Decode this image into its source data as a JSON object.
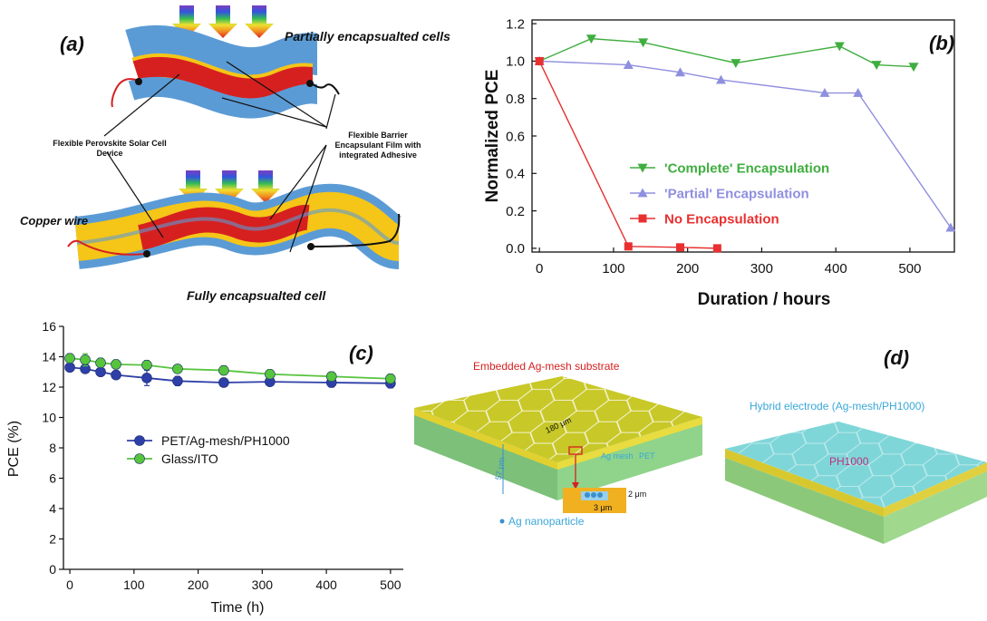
{
  "panel_a": {
    "label": "(a)",
    "top_caption": "Partially encapsualted cells",
    "bottom_caption": "Fully encapsualted cell",
    "device_label": "Flexible Perovskite Solar Cell Device",
    "barrier_label": "Flexible Barrier Encapsulant Film with integrated Adhesive",
    "wire_label": "Copper wire",
    "colors": {
      "barrier": "#5b9bd5",
      "active": "#d62020",
      "adhesive": "#f5c518"
    }
  },
  "panel_d": {
    "label": "(d)",
    "left_title": "Embedded Ag-mesh substrate",
    "right_title": "Hybrid electrode (Ag-mesh/PH1000)",
    "hex_dim": "180 μm",
    "thickness": "57 μm",
    "ag_mesh_label": "Ag mesh",
    "pet_label": "PET",
    "inset_h": "2 μm",
    "inset_w": "3 μm",
    "nanoparticle_label": "Ag nanoparticle",
    "ph_label": "PH1000"
  },
  "chart_data": [
    {
      "panel": "(b)",
      "type": "line",
      "xlabel": "Duration / hours",
      "ylabel": "Normalized PCE",
      "xlim": [
        -10,
        560
      ],
      "ylim": [
        -0.02,
        1.22
      ],
      "xticks": [
        0,
        100,
        200,
        300,
        400,
        500
      ],
      "yticks": [
        0.0,
        0.2,
        0.4,
        0.6,
        0.8,
        1.0,
        1.2
      ],
      "ytick_labels": [
        "0.0",
        "0.2",
        "0.4",
        "0.6",
        "0.8",
        "1.0",
        "1.2"
      ],
      "grid": false,
      "legend_position": "bottom-center",
      "series": [
        {
          "name": "'Complete' Encapsulation",
          "color": "#3fae3f",
          "marker": "triangle-down",
          "x": [
            0,
            70,
            140,
            265,
            405,
            455,
            505
          ],
          "y": [
            1.0,
            1.12,
            1.1,
            0.99,
            1.08,
            0.98,
            0.97
          ]
        },
        {
          "name": "'Partial' Encapsulation",
          "color": "#8f8fe0",
          "marker": "triangle-up",
          "x": [
            0,
            120,
            190,
            245,
            385,
            430,
            555
          ],
          "y": [
            1.0,
            0.98,
            0.94,
            0.9,
            0.83,
            0.83,
            0.11
          ]
        },
        {
          "name": "No Encapsulation",
          "color": "#e83030",
          "marker": "square",
          "x": [
            0,
            120,
            190,
            240
          ],
          "y": [
            1.0,
            0.01,
            0.005,
            0.0
          ]
        }
      ]
    },
    {
      "panel": "(c)",
      "type": "line",
      "xlabel": "Time (h)",
      "ylabel": "PCE (%)",
      "xlim": [
        -10,
        520
      ],
      "ylim": [
        0,
        16
      ],
      "xticks": [
        0,
        100,
        200,
        300,
        400,
        500
      ],
      "yticks": [
        0,
        2,
        4,
        6,
        8,
        10,
        12,
        14,
        16
      ],
      "grid": false,
      "legend_position": "center-left",
      "series": [
        {
          "name": "PET/Ag-mesh/PH1000",
          "color": "#2e3fa8",
          "marker": "circle",
          "x": [
            0,
            24,
            48,
            72,
            120,
            168,
            240,
            312,
            408,
            500
          ],
          "y": [
            13.3,
            13.2,
            13.0,
            12.8,
            12.6,
            12.4,
            12.3,
            12.35,
            12.3,
            12.25
          ],
          "err": [
            0.2,
            0.2,
            0.2,
            0.25,
            0.5,
            0.3,
            0.2,
            0.2,
            0.3,
            0.3
          ]
        },
        {
          "name": "Glass/ITO",
          "color": "#56c43d",
          "marker": "circle",
          "x": [
            0,
            24,
            48,
            72,
            120,
            168,
            240,
            312,
            408,
            500
          ],
          "y": [
            13.9,
            13.8,
            13.6,
            13.5,
            13.45,
            13.2,
            13.1,
            12.85,
            12.7,
            12.55
          ],
          "err": [
            0.3,
            0.4,
            0.3,
            0.3,
            0.3,
            0.2,
            0.3,
            0.3,
            0.3,
            0.3
          ]
        }
      ]
    }
  ]
}
